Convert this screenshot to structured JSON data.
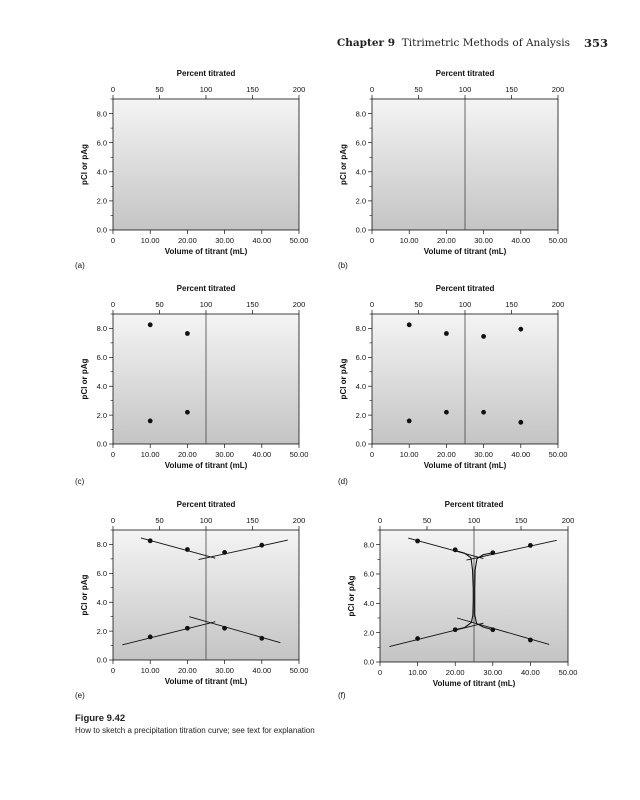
{
  "header": {
    "chapter_label": "Chapter",
    "chapter_number": "9",
    "chapter_title": "Titrimetric Methods of Analysis",
    "page_number": "353"
  },
  "caption": {
    "figure_label": "Figure 9.42",
    "text": "How to sketch a precipitation titration curve; see text for explanation"
  },
  "colors": {
    "panel_top": "#f4f4f4",
    "panel_bottom": "#c4c4c4",
    "ink": "#111111"
  },
  "chart_data": [
    {
      "type": "scatter",
      "panel_label": "(a)",
      "title": "",
      "xlabel": "Volume of titrant (mL)",
      "ylabel": "pCl or pAg",
      "x2label": "Percent titrated",
      "xlim": [
        0,
        50
      ],
      "ylim": [
        0,
        9
      ],
      "x2lim": [
        0,
        200
      ],
      "x_ticks": [
        0,
        10,
        20,
        30,
        40,
        50
      ],
      "x_tick_labels": [
        "0",
        "10.00",
        "20.00",
        "30.00",
        "40.00",
        "50.00"
      ],
      "y_ticks": [
        0,
        2,
        4,
        6,
        8
      ],
      "y_tick_labels": [
        "0.0",
        "2.0",
        "4.0",
        "6.0",
        "8.0"
      ],
      "x2_ticks": [
        0,
        50,
        100,
        150,
        200
      ],
      "x2_tick_labels": [
        "0",
        "50",
        "100",
        "150",
        "200"
      ],
      "equivalence_volume": null,
      "points": [],
      "lines": [],
      "curves": []
    },
    {
      "type": "scatter",
      "panel_label": "(b)",
      "title": "",
      "xlabel": "Volume of titrant (mL)",
      "ylabel": "pCl or pAg",
      "x2label": "Percent titrated",
      "xlim": [
        0,
        50
      ],
      "ylim": [
        0,
        9
      ],
      "x2lim": [
        0,
        200
      ],
      "x_ticks": [
        0,
        10,
        20,
        30,
        40,
        50
      ],
      "x_tick_labels": [
        "0",
        "10.00",
        "20.00",
        "30.00",
        "40.00",
        "50.00"
      ],
      "y_ticks": [
        0,
        2,
        4,
        6,
        8
      ],
      "y_tick_labels": [
        "0.0",
        "2.0",
        "4.0",
        "6.0",
        "8.0"
      ],
      "x2_ticks": [
        0,
        50,
        100,
        150,
        200
      ],
      "x2_tick_labels": [
        "0",
        "50",
        "100",
        "150",
        "200"
      ],
      "equivalence_volume": 25,
      "points": [],
      "lines": [],
      "curves": []
    },
    {
      "type": "scatter",
      "panel_label": "(c)",
      "title": "",
      "xlabel": "Volume of titrant (mL)",
      "ylabel": "pCl or pAg",
      "x2label": "Percent titrated",
      "xlim": [
        0,
        50
      ],
      "ylim": [
        0,
        9
      ],
      "x2lim": [
        0,
        200
      ],
      "x_ticks": [
        0,
        10,
        20,
        30,
        40,
        50
      ],
      "x_tick_labels": [
        "0",
        "10.00",
        "20.00",
        "30.00",
        "40.00",
        "50.00"
      ],
      "y_ticks": [
        0,
        2,
        4,
        6,
        8
      ],
      "y_tick_labels": [
        "0.0",
        "2.0",
        "4.0",
        "6.0",
        "8.0"
      ],
      "x2_ticks": [
        0,
        50,
        100,
        150,
        200
      ],
      "x2_tick_labels": [
        "0",
        "50",
        "100",
        "150",
        "200"
      ],
      "equivalence_volume": 25,
      "points": [
        [
          10,
          8.25
        ],
        [
          20,
          7.65
        ],
        [
          10,
          1.6
        ],
        [
          20,
          2.2
        ]
      ],
      "lines": [],
      "curves": []
    },
    {
      "type": "scatter",
      "panel_label": "(d)",
      "title": "",
      "xlabel": "Volume of titrant (mL)",
      "ylabel": "pCl or pAg",
      "x2label": "Percent titrated",
      "xlim": [
        0,
        50
      ],
      "ylim": [
        0,
        9
      ],
      "x2lim": [
        0,
        200
      ],
      "x_ticks": [
        0,
        10,
        20,
        30,
        40,
        50
      ],
      "x_tick_labels": [
        "0",
        "10.00",
        "20.00",
        "30.00",
        "40.00",
        "50.00"
      ],
      "y_ticks": [
        0,
        2,
        4,
        6,
        8
      ],
      "y_tick_labels": [
        "0.0",
        "2.0",
        "4.0",
        "6.0",
        "8.0"
      ],
      "x2_ticks": [
        0,
        50,
        100,
        150,
        200
      ],
      "x2_tick_labels": [
        "0",
        "50",
        "100",
        "150",
        "200"
      ],
      "equivalence_volume": 25,
      "points": [
        [
          10,
          8.25
        ],
        [
          20,
          7.65
        ],
        [
          30,
          7.45
        ],
        [
          40,
          7.95
        ],
        [
          10,
          1.6
        ],
        [
          20,
          2.2
        ],
        [
          30,
          2.2
        ],
        [
          40,
          1.5
        ]
      ],
      "lines": [],
      "curves": []
    },
    {
      "type": "line",
      "panel_label": "(e)",
      "title": "",
      "xlabel": "Volume of titrant (mL)",
      "ylabel": "pCl or pAg",
      "x2label": "Percent titrated",
      "xlim": [
        0,
        50
      ],
      "ylim": [
        0,
        9
      ],
      "x2lim": [
        0,
        200
      ],
      "x_ticks": [
        0,
        10,
        20,
        30,
        40,
        50
      ],
      "x_tick_labels": [
        "0",
        "10.00",
        "20.00",
        "30.00",
        "40.00",
        "50.00"
      ],
      "y_ticks": [
        0,
        2,
        4,
        6,
        8
      ],
      "y_tick_labels": [
        "0.0",
        "2.0",
        "4.0",
        "6.0",
        "8.0"
      ],
      "x2_ticks": [
        0,
        50,
        100,
        150,
        200
      ],
      "x2_tick_labels": [
        "0",
        "50",
        "100",
        "150",
        "200"
      ],
      "equivalence_volume": 25,
      "points": [
        [
          10,
          8.25
        ],
        [
          20,
          7.65
        ],
        [
          30,
          7.45
        ],
        [
          40,
          7.95
        ],
        [
          10,
          1.6
        ],
        [
          20,
          2.2
        ],
        [
          30,
          2.2
        ],
        [
          40,
          1.5
        ]
      ],
      "lines": [
        [
          [
            7.5,
            8.45
          ],
          [
            27.5,
            7.05
          ]
        ],
        [
          [
            23,
            6.95
          ],
          [
            47,
            8.3
          ]
        ],
        [
          [
            2.5,
            1.05
          ],
          [
            27.5,
            2.65
          ]
        ],
        [
          [
            20.5,
            3.0
          ],
          [
            45,
            1.2
          ]
        ]
      ],
      "curves": []
    },
    {
      "type": "line",
      "panel_label": "(f)",
      "title": "",
      "xlabel": "Volume of titrant (mL)",
      "ylabel": "pCl or pAg",
      "x2label": "Percent titrated",
      "xlim": [
        0,
        50
      ],
      "ylim": [
        0,
        9
      ],
      "x2lim": [
        0,
        200
      ],
      "x_ticks": [
        0,
        10,
        20,
        30,
        40,
        50
      ],
      "x_tick_labels": [
        "0",
        "10.00",
        "20.00",
        "30.00",
        "40.00",
        "50.00"
      ],
      "y_ticks": [
        0,
        2,
        4,
        6,
        8
      ],
      "y_tick_labels": [
        "0.0",
        "2.0",
        "4.0",
        "6.0",
        "8.0"
      ],
      "x2_ticks": [
        0,
        50,
        100,
        150,
        200
      ],
      "x2_tick_labels": [
        "0",
        "50",
        "100",
        "150",
        "200"
      ],
      "equivalence_volume": 25,
      "points": [
        [
          10,
          8.25
        ],
        [
          20,
          7.65
        ],
        [
          30,
          7.45
        ],
        [
          40,
          7.95
        ],
        [
          10,
          1.6
        ],
        [
          20,
          2.2
        ],
        [
          30,
          2.2
        ],
        [
          40,
          1.5
        ]
      ],
      "lines": [
        [
          [
            7.5,
            8.45
          ],
          [
            27.5,
            7.05
          ]
        ],
        [
          [
            23,
            6.95
          ],
          [
            47,
            8.3
          ]
        ],
        [
          [
            2.5,
            1.05
          ],
          [
            27.5,
            2.65
          ]
        ],
        [
          [
            20.5,
            3.0
          ],
          [
            45,
            1.2
          ]
        ]
      ],
      "curves": [
        [
          [
            20,
            7.6
          ],
          [
            22.5,
            7.42
          ],
          [
            24.2,
            7.1
          ],
          [
            24.6,
            6.3
          ],
          [
            24.8,
            5.0
          ],
          [
            24.8,
            4.2
          ],
          [
            24.7,
            3.2
          ],
          [
            24.3,
            2.7
          ],
          [
            22.5,
            2.35
          ],
          [
            20,
            2.2
          ]
        ],
        [
          [
            30,
            7.45
          ],
          [
            27.5,
            7.32
          ],
          [
            25.8,
            7.05
          ],
          [
            25.3,
            6.3
          ],
          [
            25.2,
            5.0
          ],
          [
            25.2,
            4.2
          ],
          [
            25.2,
            3.2
          ],
          [
            25.7,
            2.62
          ],
          [
            27.5,
            2.38
          ],
          [
            30,
            2.2
          ]
        ]
      ]
    }
  ]
}
